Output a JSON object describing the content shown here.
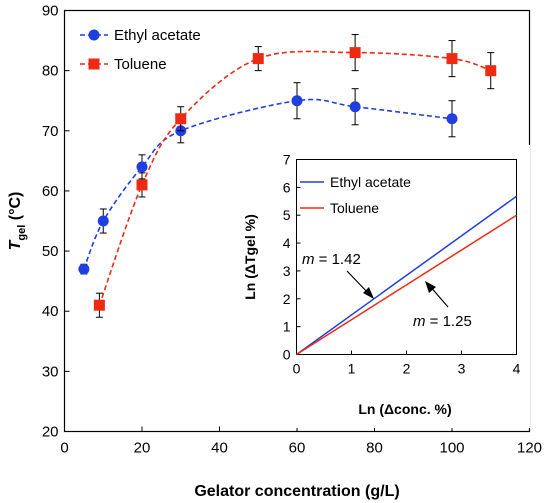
{
  "chart_data": [
    {
      "type": "line",
      "x_axis": {
        "label": "Gelator concentration (g/L)",
        "range": [
          0,
          120
        ],
        "ticks": [
          "0",
          "20",
          "40",
          "60",
          "80",
          "100",
          "120"
        ]
      },
      "y_axis": {
        "label_main": "T",
        "label_sub": "gel",
        "label_rest": " (°C)",
        "range": [
          20,
          90
        ],
        "ticks": [
          "20",
          "30",
          "40",
          "50",
          "60",
          "70",
          "80",
          "90"
        ]
      },
      "legend_position": "top-left",
      "series": [
        {
          "name": "Ethyl acetate",
          "color": "#1f3fe0",
          "marker": "circle",
          "line_style": "dashed",
          "points": [
            {
              "x": 5,
              "y": 47,
              "err": 0.8
            },
            {
              "x": 10,
              "y": 55,
              "err": 2
            },
            {
              "x": 20,
              "y": 64,
              "err": 2
            },
            {
              "x": 30,
              "y": 70,
              "err": 2
            },
            {
              "x": 60,
              "y": 75,
              "err": 3
            },
            {
              "x": 75,
              "y": 74,
              "err": 3
            },
            {
              "x": 100,
              "y": 72,
              "err": 3
            }
          ]
        },
        {
          "name": "Toluene",
          "color": "#ee2a12",
          "marker": "square",
          "line_style": "dashed",
          "points": [
            {
              "x": 9,
              "y": 41,
              "err": 2
            },
            {
              "x": 20,
              "y": 61,
              "err": 2
            },
            {
              "x": 30,
              "y": 72,
              "err": 2
            },
            {
              "x": 50,
              "y": 82,
              "err": 2
            },
            {
              "x": 75,
              "y": 83,
              "err": 3
            },
            {
              "x": 100,
              "y": 82,
              "err": 3
            },
            {
              "x": 110,
              "y": 80,
              "err": 3
            }
          ]
        }
      ]
    },
    {
      "type": "line",
      "placement": "inset, lower-right",
      "x_axis": {
        "label": "Ln (Δconc. %)",
        "range": [
          0,
          4
        ],
        "ticks": [
          "0",
          "1",
          "2",
          "3",
          "4"
        ]
      },
      "y_axis": {
        "label": "Ln (ΔTgel %)",
        "range": [
          0,
          7
        ],
        "ticks": [
          "0",
          "1",
          "2",
          "3",
          "4",
          "5",
          "6",
          "7"
        ]
      },
      "legend_position": "top-left",
      "series": [
        {
          "name": "Ethyl acetate",
          "color": "#1f3fe0",
          "x": [
            0,
            4
          ],
          "y": [
            0,
            5.68
          ]
        },
        {
          "name": "Toluene",
          "color": "#ee2a12",
          "x": [
            0,
            4
          ],
          "y": [
            0,
            5.0
          ]
        }
      ],
      "annotations": [
        {
          "label": "m",
          "text": " = 1.42",
          "arrow_to": [
            1.4,
            1.99
          ]
        },
        {
          "label": "m",
          "text": " = 1.25",
          "arrow_to": [
            2.1,
            2.62
          ]
        }
      ]
    }
  ]
}
